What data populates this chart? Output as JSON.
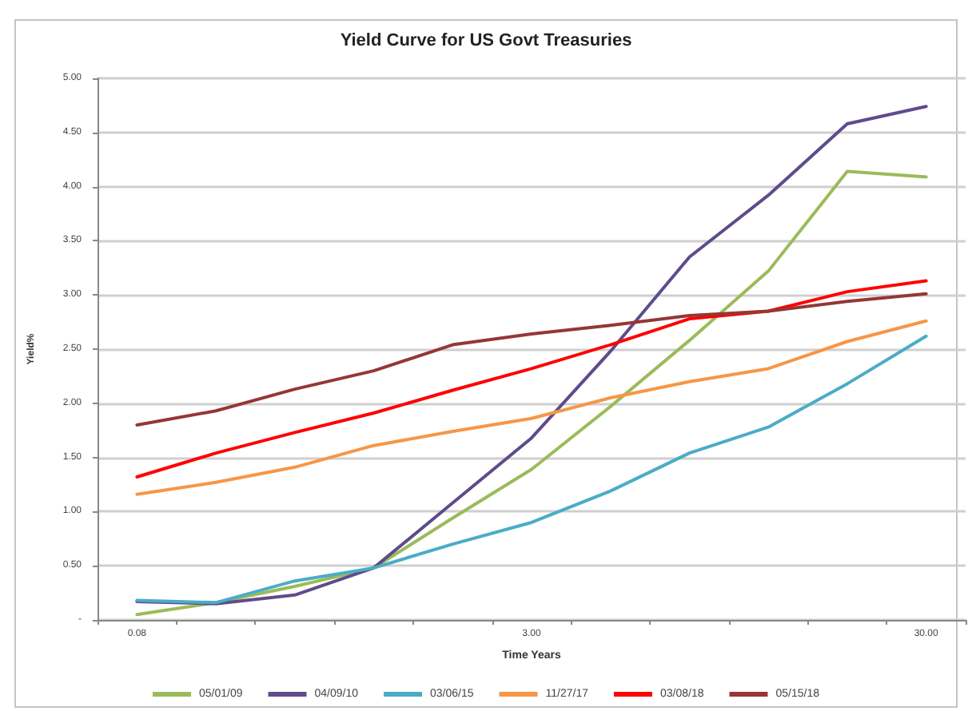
{
  "chart_data": {
    "type": "line",
    "title": "Yield Curve for US Govt Treasuries",
    "xlabel": "Time Years",
    "ylabel": "Yield%",
    "categories": [
      "0.08",
      null,
      null,
      null,
      null,
      "3.00",
      null,
      null,
      null,
      null,
      "30.00"
    ],
    "series": [
      {
        "name": "05/01/09",
        "color": "#9bbb59",
        "values": [
          0.05,
          0.16,
          0.31,
          0.48,
          0.94,
          1.39,
          1.97,
          2.58,
          3.22,
          4.14,
          4.09
        ]
      },
      {
        "name": "04/09/10",
        "color": "#5f4b8b",
        "values": [
          0.17,
          0.15,
          0.23,
          0.48,
          1.08,
          1.68,
          2.48,
          3.35,
          3.92,
          4.58,
          4.74
        ]
      },
      {
        "name": "03/06/15",
        "color": "#4bacc6",
        "values": [
          0.18,
          0.16,
          0.36,
          0.48,
          0.7,
          0.9,
          1.19,
          1.54,
          1.78,
          2.18,
          2.62
        ]
      },
      {
        "name": "11/27/17",
        "color": "#f79646",
        "values": [
          1.16,
          1.27,
          1.41,
          1.61,
          1.74,
          1.86,
          2.05,
          2.2,
          2.32,
          2.57,
          2.76
        ]
      },
      {
        "name": "03/08/18",
        "color": "#ff0000",
        "values": [
          1.32,
          1.54,
          1.73,
          1.91,
          2.12,
          2.32,
          2.54,
          2.78,
          2.85,
          3.03,
          3.13
        ]
      },
      {
        "name": "05/15/18",
        "color": "#953735",
        "values": [
          1.8,
          1.93,
          2.13,
          2.3,
          2.54,
          2.64,
          2.72,
          2.81,
          2.85,
          2.94,
          3.01
        ]
      }
    ],
    "ylim": [
      0,
      5
    ],
    "yticks": [
      {
        "value": 0,
        "label": "-"
      },
      {
        "value": 0.5,
        "label": "0.50"
      },
      {
        "value": 1,
        "label": "1.00"
      },
      {
        "value": 1.5,
        "label": "1.50"
      },
      {
        "value": 2,
        "label": "2.00"
      },
      {
        "value": 2.5,
        "label": "2.50"
      },
      {
        "value": 3,
        "label": "3.00"
      },
      {
        "value": 3.5,
        "label": "3.50"
      },
      {
        "value": 4,
        "label": "4.00"
      },
      {
        "value": 4.5,
        "label": "4.50"
      },
      {
        "value": 5,
        "label": "5.00"
      }
    ],
    "grid": "y",
    "legend": "bottom",
    "marker": "none",
    "line_style": "solid"
  }
}
